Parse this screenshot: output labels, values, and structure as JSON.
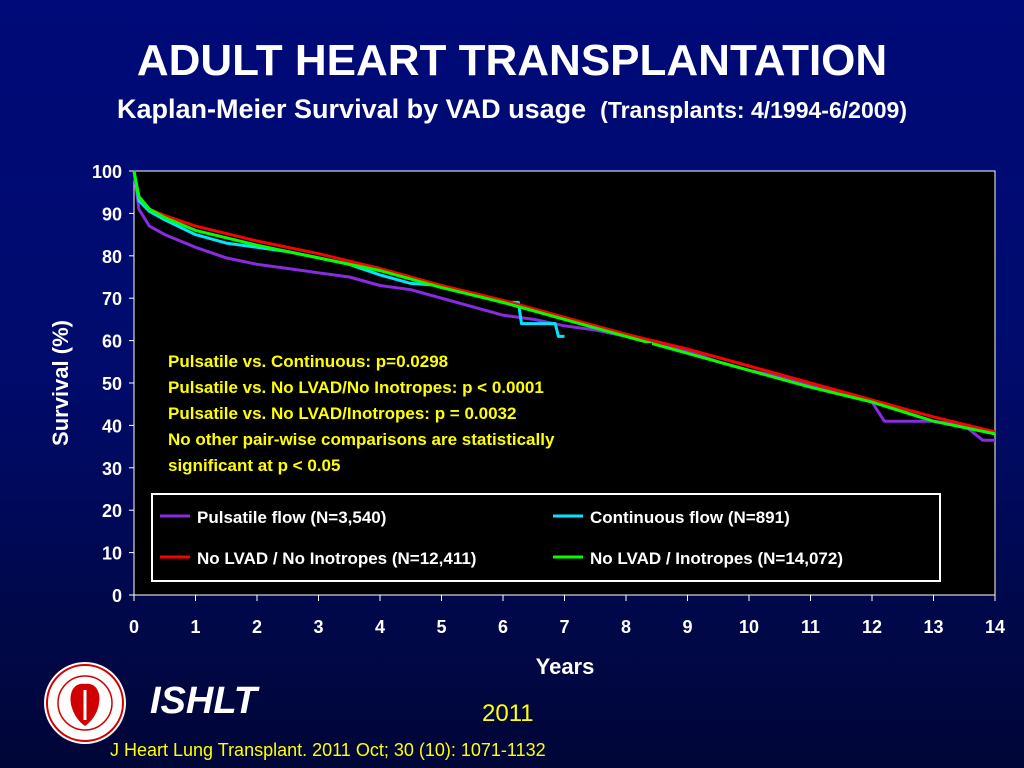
{
  "header": {
    "title": "ADULT HEART TRANSPLANTATION",
    "subtitle": "Kaplan-Meier Survival by VAD usage",
    "subtitle_detail": "(Transplants: 4/1994-6/2009)"
  },
  "footer": {
    "org": "ISHLT",
    "year": "2011",
    "citation": "J Heart Lung Transplant. 2011 Oct; 30 (10): 1071-1132",
    "logo_icon": "ishlt-seal-logo"
  },
  "colors": {
    "background": "#000a78",
    "plot_background": "#000000",
    "annotation": "#ffff00",
    "text": "#ffffff"
  },
  "chart_data": {
    "type": "line",
    "xlabel": "Years",
    "ylabel": "Survival (%)",
    "xlim": [
      0,
      14
    ],
    "ylim": [
      0,
      100
    ],
    "xticks": [
      0,
      1,
      2,
      3,
      4,
      5,
      6,
      7,
      8,
      9,
      10,
      11,
      12,
      13,
      14
    ],
    "yticks": [
      0,
      10,
      20,
      30,
      40,
      50,
      60,
      70,
      80,
      90,
      100
    ],
    "grid": false,
    "legend": "bottom-inside",
    "annotations": [
      "Pulsatile vs. Continuous: p=0.0298",
      "Pulsatile vs. No LVAD/No Inotropes: p < 0.0001",
      "Pulsatile vs. No LVAD/Inotropes: p = 0.0032",
      "No other pair-wise comparisons are statistically",
      "significant at p < 0.05"
    ],
    "series": [
      {
        "name": "Pulsatile flow (N=3,540)",
        "color": "#8a2be2",
        "x": [
          0,
          0.08,
          0.25,
          0.5,
          1,
          1.5,
          2,
          2.5,
          3,
          3.5,
          4,
          4.5,
          5,
          5.5,
          6,
          6.5,
          7,
          7.5,
          8,
          8.5,
          9,
          9.5,
          10,
          10.5,
          11,
          11.5,
          12,
          12.2,
          12.5,
          13,
          13.5,
          13.8,
          14
        ],
        "y": [
          100,
          91,
          87,
          85,
          82,
          79.5,
          78,
          77,
          76,
          75,
          73,
          72,
          70,
          68,
          66,
          65,
          63.5,
          62.5,
          61,
          59,
          57.5,
          55,
          53,
          51.5,
          49.5,
          48,
          45.5,
          41,
          41,
          41,
          40,
          36.5,
          36.5
        ]
      },
      {
        "name": "Continuous flow (N=891)",
        "color": "#00e5ff",
        "x": [
          0,
          0.08,
          0.25,
          0.5,
          1,
          1.5,
          2,
          2.5,
          3,
          3.5,
          4,
          4.5,
          5,
          5.5,
          6,
          6.25,
          6.3,
          6.5,
          6.85,
          6.9,
          7
        ],
        "y": [
          100,
          93,
          90.5,
          88.5,
          85,
          83,
          82,
          81,
          79.5,
          78,
          75.5,
          73.5,
          73,
          71,
          69,
          69,
          64,
          64,
          64,
          61,
          61
        ]
      },
      {
        "name": "No LVAD / No Inotropes  (N=12,411)",
        "color": "#ff0000",
        "x": [
          0,
          0.08,
          0.25,
          0.5,
          1,
          2,
          3,
          4,
          5,
          6,
          7,
          8,
          9,
          10,
          11,
          12,
          13,
          14
        ],
        "y": [
          100,
          94,
          91,
          89.5,
          87,
          83.5,
          80.5,
          77,
          73,
          69.5,
          65.5,
          61.5,
          58,
          54,
          50,
          46,
          42,
          38.5
        ]
      },
      {
        "name": "No LVAD / Inotropes (N=14,072)",
        "color": "#00ff00",
        "x": [
          0,
          0.08,
          0.25,
          0.5,
          1,
          2,
          3,
          4,
          5,
          6,
          7,
          8,
          9,
          10,
          11,
          12,
          13,
          14
        ],
        "y": [
          100,
          94,
          91,
          89,
          86,
          82.5,
          79.5,
          76.5,
          72.5,
          69,
          65,
          61,
          57,
          53,
          49,
          45.5,
          41,
          38
        ]
      }
    ]
  }
}
